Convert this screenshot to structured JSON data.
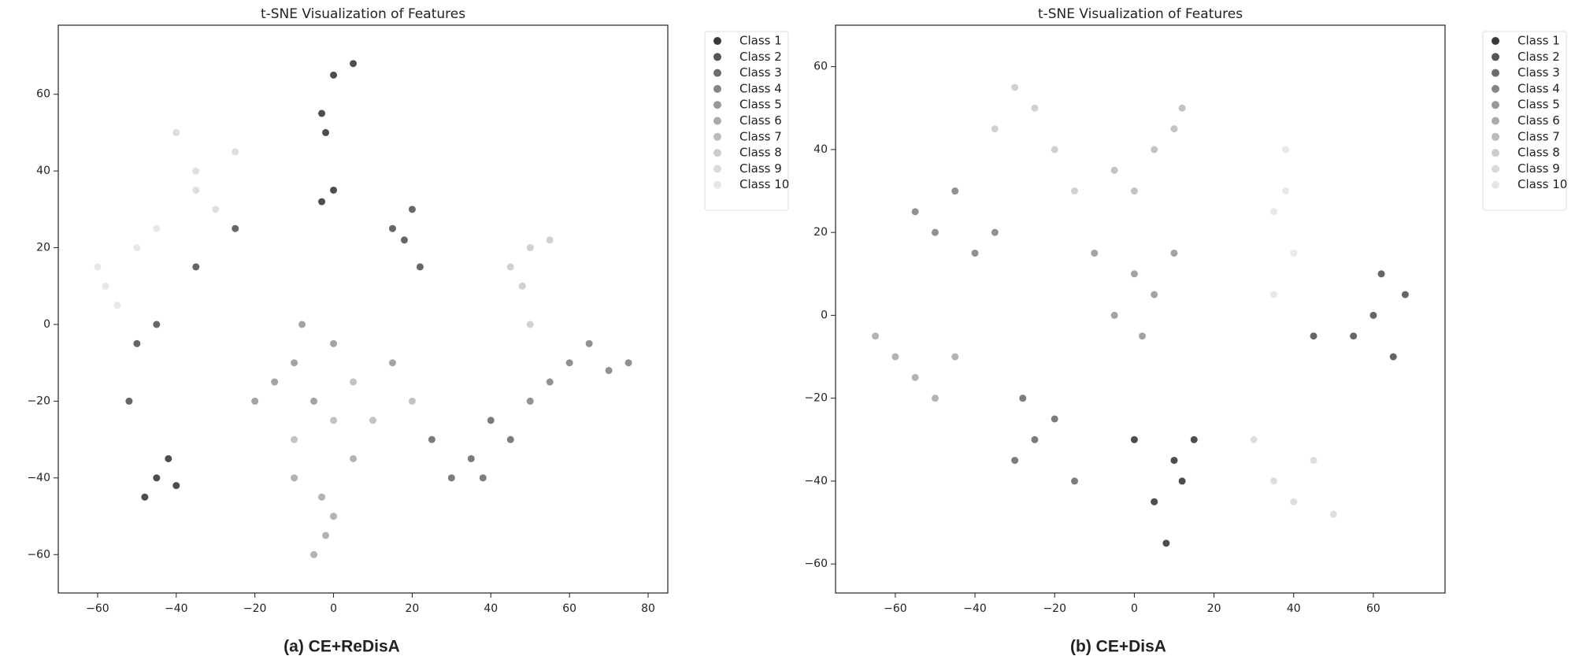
{
  "chart_data": [
    {
      "type": "scatter",
      "title": "t-SNE Visualization of Features",
      "caption": "(a) CE+ReDisA",
      "xlim": [
        -70,
        85
      ],
      "ylim": [
        -70,
        78
      ],
      "xticks": [
        {
          "value": -60,
          "label": "−60"
        },
        {
          "value": -40,
          "label": "−40"
        },
        {
          "value": -20,
          "label": "−20"
        },
        0,
        20,
        40,
        60,
        80
      ],
      "yticks": [
        {
          "value": -60,
          "label": "−60"
        },
        {
          "value": -40,
          "label": "−40"
        },
        {
          "value": -20,
          "label": "−20"
        },
        0,
        20,
        40,
        60
      ],
      "series": [
        {
          "name": "Class 1",
          "color": "#3a3a3a",
          "x": [
            0,
            5,
            -3,
            -2,
            -45,
            -48,
            -42,
            -40,
            0,
            -3
          ],
          "y": [
            65,
            68,
            55,
            50,
            -40,
            -45,
            -35,
            -42,
            35,
            32
          ]
        },
        {
          "name": "Class 2",
          "color": "#555555",
          "x": [
            20,
            18,
            22,
            15,
            -50,
            -45,
            -35,
            -25,
            -52
          ],
          "y": [
            30,
            22,
            15,
            25,
            -5,
            0,
            15,
            25,
            -20
          ]
        },
        {
          "name": "Class 3",
          "color": "#6e6e6e",
          "x": [
            35,
            30,
            40,
            25,
            38,
            45
          ],
          "y": [
            -35,
            -40,
            -25,
            -30,
            -40,
            -30
          ]
        },
        {
          "name": "Class 4",
          "color": "#858585",
          "x": [
            60,
            70,
            55,
            65,
            75,
            50
          ],
          "y": [
            -10,
            -12,
            -15,
            -5,
            -10,
            -20
          ]
        },
        {
          "name": "Class 5",
          "color": "#999999",
          "x": [
            -15,
            -20,
            -10,
            -5,
            -8,
            0,
            15
          ],
          "y": [
            -15,
            -20,
            -10,
            -20,
            0,
            -5,
            -10
          ]
        },
        {
          "name": "Class 6",
          "color": "#ababab",
          "x": [
            -2,
            -5,
            -3,
            0,
            -10,
            5
          ],
          "y": [
            -55,
            -60,
            -45,
            -50,
            -40,
            -35
          ]
        },
        {
          "name": "Class 7",
          "color": "#bcbcbc",
          "x": [
            5,
            10,
            -10,
            20,
            0
          ],
          "y": [
            -15,
            -25,
            -30,
            -20,
            -25
          ]
        },
        {
          "name": "Class 8",
          "color": "#cccccc",
          "x": [
            50,
            45,
            55,
            50,
            48
          ],
          "y": [
            20,
            15,
            22,
            0,
            10
          ]
        },
        {
          "name": "Class 9",
          "color": "#dadada",
          "x": [
            -40,
            -35,
            -30,
            -25,
            -35
          ],
          "y": [
            50,
            40,
            30,
            45,
            35
          ]
        },
        {
          "name": "Class 10",
          "color": "#e6e6e6",
          "x": [
            -60,
            -55,
            -50,
            -58,
            -45
          ],
          "y": [
            15,
            5,
            20,
            10,
            25
          ]
        }
      ]
    },
    {
      "type": "scatter",
      "title": "t-SNE Visualization of Features",
      "caption": "(b) CE+DisA",
      "xlim": [
        -75,
        78
      ],
      "ylim": [
        -67,
        70
      ],
      "xticks": [
        {
          "value": -60,
          "label": "−60"
        },
        {
          "value": -40,
          "label": "−40"
        },
        {
          "value": -20,
          "label": "−20"
        },
        0,
        20,
        40,
        60
      ],
      "yticks": [
        {
          "value": -60,
          "label": "−60"
        },
        {
          "value": -40,
          "label": "−40"
        },
        {
          "value": -20,
          "label": "−20"
        },
        0,
        20,
        40,
        60
      ],
      "series": [
        {
          "name": "Class 1",
          "color": "#3a3a3a",
          "x": [
            10,
            5,
            8,
            12,
            0,
            15
          ],
          "y": [
            -35,
            -45,
            -55,
            -40,
            -30,
            -30
          ]
        },
        {
          "name": "Class 2",
          "color": "#555555",
          "x": [
            60,
            65,
            62,
            55,
            68,
            45
          ],
          "y": [
            0,
            -10,
            10,
            -5,
            5,
            -5
          ]
        },
        {
          "name": "Class 3",
          "color": "#6e6e6e",
          "x": [
            -25,
            -30,
            -20,
            -15,
            -28
          ],
          "y": [
            -30,
            -35,
            -25,
            -40,
            -20
          ]
        },
        {
          "name": "Class 4",
          "color": "#858585",
          "x": [
            -55,
            -50,
            -45,
            -40,
            -35
          ],
          "y": [
            25,
            20,
            30,
            15,
            20
          ]
        },
        {
          "name": "Class 5",
          "color": "#999999",
          "x": [
            0,
            5,
            -5,
            10,
            2,
            -10
          ],
          "y": [
            10,
            5,
            0,
            15,
            -5,
            15
          ]
        },
        {
          "name": "Class 6",
          "color": "#ababab",
          "x": [
            -60,
            -55,
            -65,
            -50,
            -45
          ],
          "y": [
            -10,
            -15,
            -5,
            -20,
            -10
          ]
        },
        {
          "name": "Class 7",
          "color": "#bcbcbc",
          "x": [
            10,
            5,
            12,
            -5,
            0
          ],
          "y": [
            45,
            40,
            50,
            35,
            30
          ]
        },
        {
          "name": "Class 8",
          "color": "#cccccc",
          "x": [
            -30,
            -25,
            -35,
            -20,
            -15
          ],
          "y": [
            55,
            50,
            45,
            40,
            30
          ]
        },
        {
          "name": "Class 9",
          "color": "#dadada",
          "x": [
            35,
            40,
            45,
            30,
            50
          ],
          "y": [
            -40,
            -45,
            -35,
            -30,
            -48
          ]
        },
        {
          "name": "Class 10",
          "color": "#e6e6e6",
          "x": [
            38,
            35,
            40,
            38,
            35
          ],
          "y": [
            40,
            25,
            15,
            30,
            5
          ]
        }
      ]
    }
  ]
}
